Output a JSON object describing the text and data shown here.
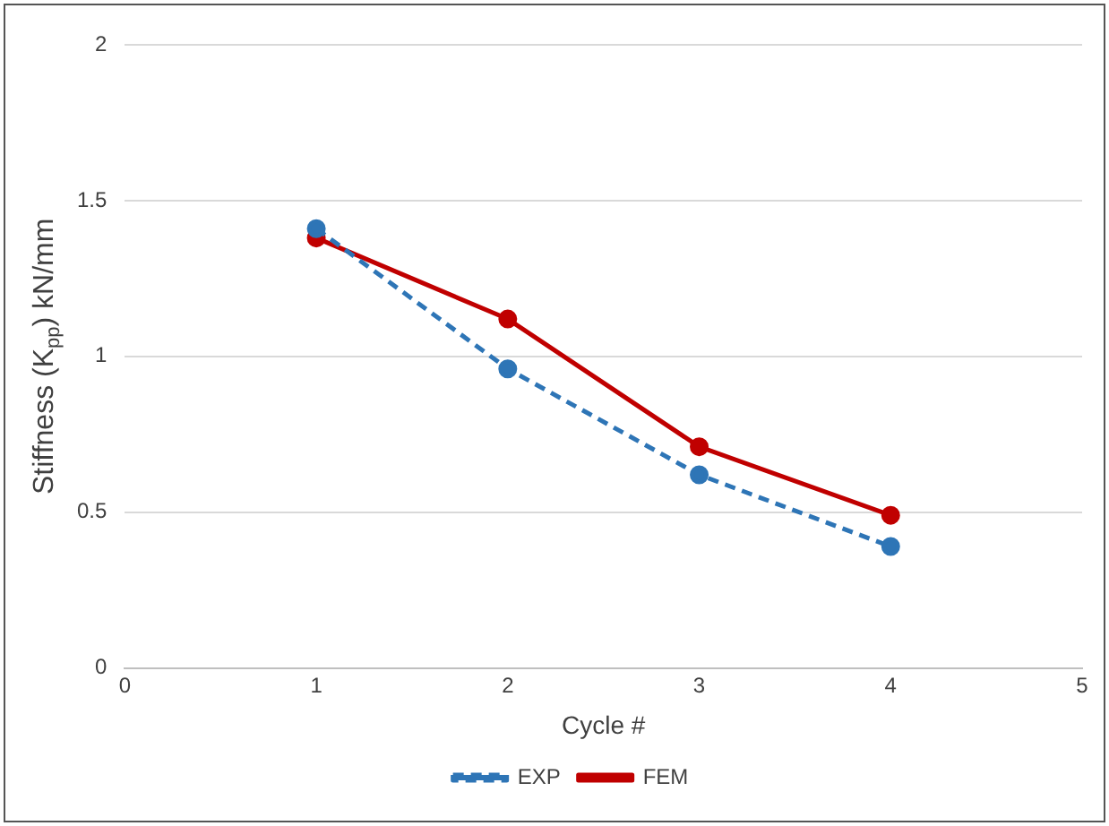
{
  "chart_data": {
    "type": "line",
    "xlabel": "Cycle #",
    "ylabel": "Stiffness (K$_{pp}$) kN/mm",
    "x": [
      1,
      2,
      3,
      4
    ],
    "series": [
      {
        "name": "EXP",
        "color": "#2e75b6",
        "values": [
          1.41,
          0.96,
          0.62,
          0.39
        ],
        "line_style": "dashed"
      },
      {
        "name": "FEM",
        "color": "#c00000",
        "values": [
          1.38,
          1.12,
          0.71,
          0.49
        ],
        "line_style": "solid"
      }
    ],
    "xlim": [
      0,
      5
    ],
    "xticks": [
      0,
      1,
      2,
      3,
      4,
      5
    ],
    "ylim": [
      0,
      2
    ],
    "yticks": [
      0,
      0.5,
      1,
      1.5,
      2
    ],
    "grid": "y",
    "legend": "bottom",
    "marker": "circle"
  }
}
